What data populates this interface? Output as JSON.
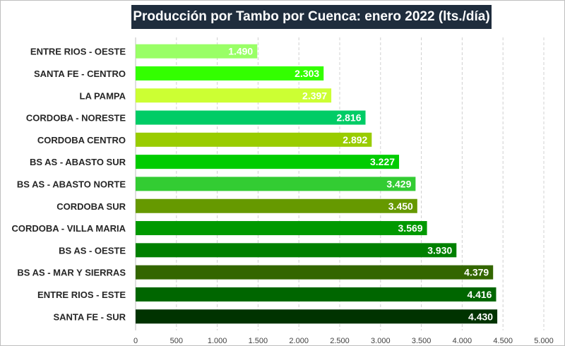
{
  "chart_data": {
    "type": "bar",
    "orientation": "horizontal",
    "title": "Producción por Tambo por Cuenca: enero 2022 (lts./día)",
    "xlabel": "",
    "ylabel": "",
    "xlim": [
      0,
      5000
    ],
    "grid": true,
    "tick_labels": [
      "0",
      "500",
      "1.000",
      "1.500",
      "2.000",
      "2.500",
      "3.000",
      "3.500",
      "4.000",
      "4.500",
      "5.000"
    ],
    "categories": [
      "ENTRE RIOS - OESTE",
      "SANTA FE - CENTRO",
      "LA PAMPA",
      "CORDOBA - NORESTE",
      "CORDOBA CENTRO",
      "BS AS - ABASTO SUR",
      "BS AS - ABASTO NORTE",
      "CORDOBA SUR",
      "CORDOBA - VILLA MARIA",
      "BS AS - OESTE",
      "BS AS - MAR Y SIERRAS",
      "ENTRE RIOS - ESTE",
      "SANTA FE - SUR"
    ],
    "values": [
      1490,
      2303,
      2397,
      2816,
      2892,
      3227,
      3429,
      3450,
      3569,
      3930,
      4379,
      4416,
      4430
    ],
    "value_labels": [
      "1.490",
      "2.303",
      "2.397",
      "2.816",
      "2.892",
      "3.227",
      "3.429",
      "3.450",
      "3.569",
      "3.930",
      "4.379",
      "4.416",
      "4.430"
    ],
    "colors": [
      "#99ff66",
      "#33ff00",
      "#ccff33",
      "#00cc66",
      "#99cc00",
      "#00cc00",
      "#33cc33",
      "#669900",
      "#009900",
      "#008000",
      "#336600",
      "#006600",
      "#003300"
    ]
  }
}
